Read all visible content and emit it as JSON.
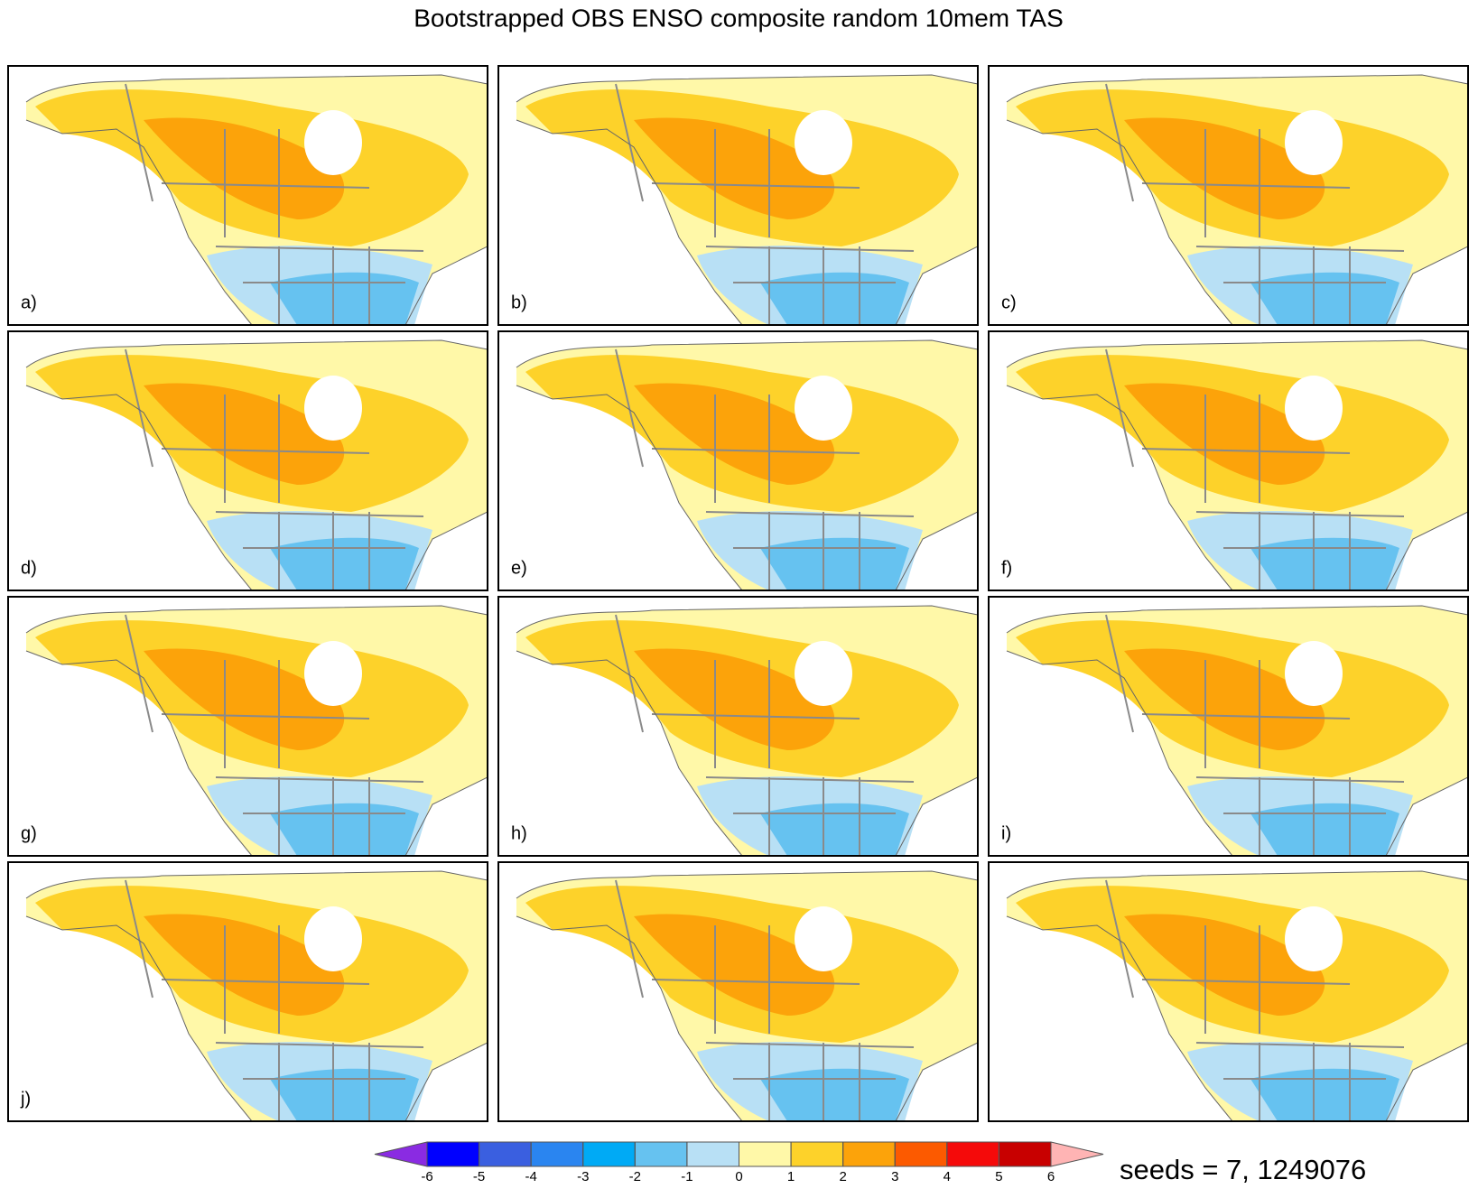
{
  "title": "Bootstrapped OBS ENSO composite random 10mem TAS",
  "panels": [
    {
      "label": "a)"
    },
    {
      "label": "b)"
    },
    {
      "label": "c)"
    },
    {
      "label": "d)"
    },
    {
      "label": "e)"
    },
    {
      "label": "f)"
    },
    {
      "label": "g)"
    },
    {
      "label": "h)"
    },
    {
      "label": "i)"
    },
    {
      "label": "j)"
    },
    {
      "label": null
    },
    {
      "label": null
    }
  ],
  "colorbar": {
    "ticks": [
      -6,
      -5,
      -4,
      -3,
      -2,
      -1,
      0,
      1,
      2,
      3,
      4,
      5,
      6
    ],
    "colors": [
      "#8a2be2",
      "#0000ff",
      "#3a5fe0",
      "#2a85f0",
      "#00aaf5",
      "#66c2f0",
      "#b8e0f5",
      "#fff8a8",
      "#fdd22a",
      "#fca30a",
      "#fc5a00",
      "#f50a0a",
      "#c80000",
      "#ffb4b4"
    ]
  },
  "seeds_text": "seeds = 7, 1249076"
}
